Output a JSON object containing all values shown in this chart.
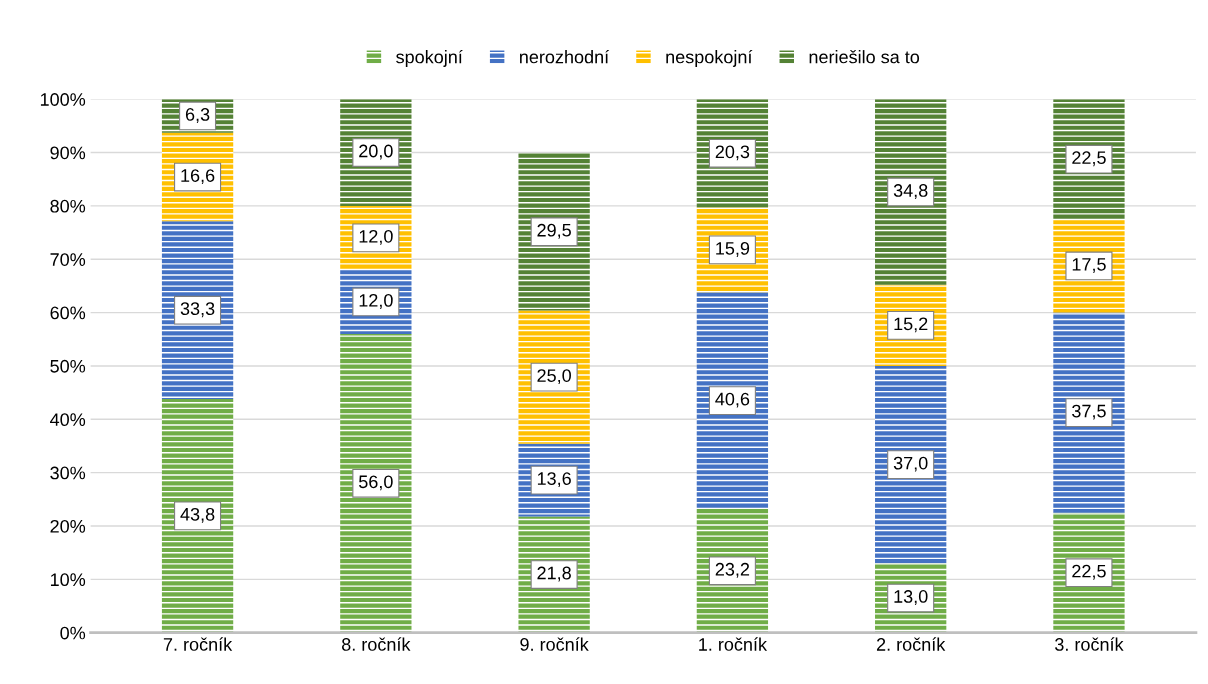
{
  "chart_data": {
    "type": "bar",
    "stacked": true,
    "categories": [
      "7. ročník",
      "8. ročník",
      "9. ročník",
      "1. ročník",
      "2. ročník",
      "3. ročník"
    ],
    "series": [
      {
        "name": "spokojní",
        "color": "#70ad47",
        "values": [
          43.8,
          56.0,
          21.8,
          23.2,
          13.0,
          22.5
        ],
        "value_labels": [
          "43,8",
          "56,0",
          "21,8",
          "23,2",
          "13,0",
          "22,5"
        ]
      },
      {
        "name": "nerozhodní",
        "color": "#4472c4",
        "values": [
          33.3,
          12.0,
          13.6,
          40.6,
          37.0,
          37.5
        ],
        "value_labels": [
          "33,3",
          "12,0",
          "13,6",
          "40,6",
          "37,0",
          "37,5"
        ]
      },
      {
        "name": "nespokojní",
        "color": "#ffc000",
        "values": [
          16.6,
          12.0,
          25.0,
          15.9,
          15.2,
          17.5
        ],
        "value_labels": [
          "16,6",
          "12,0",
          "25,0",
          "15,9",
          "15,2",
          "17,5"
        ]
      },
      {
        "name": "neriešilo sa to",
        "color": "#548235",
        "values": [
          6.3,
          20.0,
          29.5,
          20.3,
          34.8,
          22.5
        ],
        "value_labels": [
          "6,3",
          "20,0",
          "29,5",
          "20,3",
          "34,8",
          "22,5"
        ]
      }
    ],
    "ylim": [
      0,
      100
    ],
    "yticks": [
      {
        "value": 0,
        "label": "0%"
      },
      {
        "value": 10,
        "label": "10%"
      },
      {
        "value": 20,
        "label": "20%"
      },
      {
        "value": 30,
        "label": "30%"
      },
      {
        "value": 40,
        "label": "40%"
      },
      {
        "value": 50,
        "label": "50%"
      },
      {
        "value": 60,
        "label": "60%"
      },
      {
        "value": 70,
        "label": "70%"
      },
      {
        "value": 80,
        "label": "80%"
      },
      {
        "value": 90,
        "label": "90%"
      },
      {
        "value": 100,
        "label": "100%"
      }
    ],
    "grid": "y",
    "legend": "top"
  }
}
